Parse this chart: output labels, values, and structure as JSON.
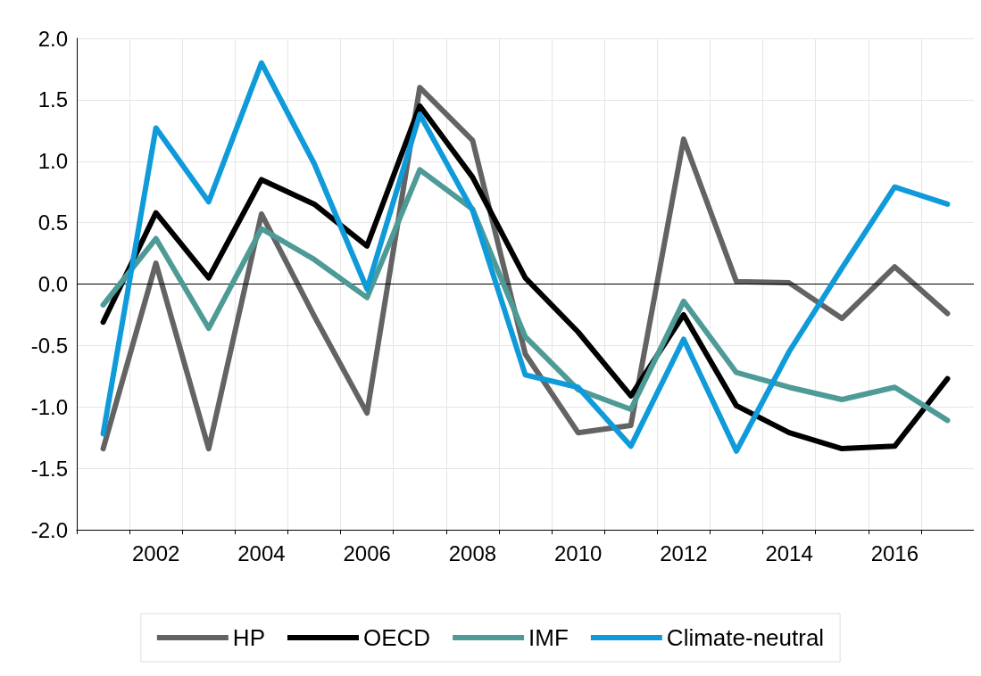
{
  "chart_data": {
    "type": "line",
    "categories": [
      null,
      "2002",
      null,
      "2004",
      null,
      "2006",
      null,
      "2008",
      null,
      "2010",
      null,
      "2012",
      null,
      "2014",
      null,
      "2016",
      null
    ],
    "ylim": [
      -2,
      2
    ],
    "yticks": [
      {
        "value": -2,
        "label": "-2.0"
      },
      {
        "value": -1.5,
        "label": "-1.5"
      },
      {
        "value": -1,
        "label": "-1.0"
      },
      {
        "value": -0.5,
        "label": "-0.5"
      },
      {
        "value": 0,
        "label": "0.0"
      },
      {
        "value": 0.5,
        "label": "0.5"
      },
      {
        "value": 1,
        "label": "1.0"
      },
      {
        "value": 1.5,
        "label": "1.5"
      },
      {
        "value": 2,
        "label": "2.0"
      }
    ],
    "grid": true,
    "legend": "bottom",
    "marker": "none",
    "line_style": "solid",
    "ref_lines": [
      {
        "axis": "y",
        "value": 0,
        "color": "#000000"
      }
    ],
    "series": [
      {
        "name": "HP",
        "color": "#636363",
        "values": [
          -1.34,
          0.17,
          -1.34,
          0.57,
          -0.26,
          -1.05,
          1.6,
          1.17,
          -0.57,
          -1.21,
          -1.15,
          1.18,
          0.02,
          0.01,
          -0.28,
          0.14,
          -0.24
        ]
      },
      {
        "name": "OECD",
        "color": "#000000",
        "values": [
          -0.31,
          0.58,
          0.05,
          0.85,
          0.65,
          0.31,
          1.45,
          0.87,
          0.05,
          -0.39,
          -0.91,
          -0.25,
          -0.99,
          -1.21,
          -1.34,
          -1.32,
          -0.77
        ]
      },
      {
        "name": "IMF",
        "color": "#4e9a97",
        "values": [
          -0.17,
          0.37,
          -0.36,
          0.45,
          0.2,
          -0.11,
          0.93,
          0.61,
          -0.43,
          -0.86,
          -1.02,
          -0.14,
          -0.72,
          -0.84,
          -0.94,
          -0.84,
          -1.11
        ]
      },
      {
        "name": "Climate-neutral",
        "color": "#0f9ad9",
        "values": [
          -1.22,
          1.27,
          0.67,
          1.8,
          0.98,
          -0.04,
          1.38,
          0.6,
          -0.74,
          -0.84,
          -1.32,
          -0.45,
          -1.36,
          -0.55,
          0.13,
          0.79,
          0.65
        ]
      }
    ]
  }
}
